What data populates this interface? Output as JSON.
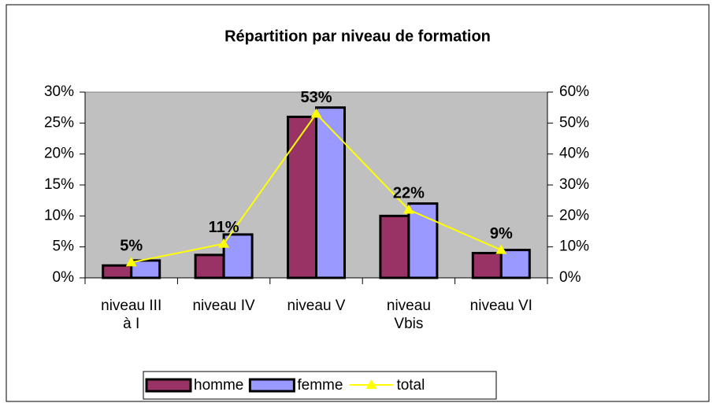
{
  "chart_data": {
    "type": "bar-line",
    "title": "Répartition par niveau de formation",
    "categories": [
      "niveau III à I",
      "niveau IV",
      "niveau V",
      "niveau Vbis",
      "niveau VI"
    ],
    "series": [
      {
        "name": "homme",
        "color": "#993366",
        "type": "bar",
        "values": [
          2,
          3.7,
          26,
          10,
          4
        ]
      },
      {
        "name": "femme",
        "color": "#9999ff",
        "type": "bar",
        "values": [
          2.8,
          7,
          27.5,
          12,
          4.5
        ]
      },
      {
        "name": "total",
        "color": "#ffff00",
        "type": "line",
        "axis": "y2",
        "values": [
          5,
          11,
          53,
          22,
          9
        ],
        "value_labels": [
          "5%",
          "11%",
          "53%",
          "22%",
          "9%"
        ]
      }
    ],
    "ylim": [
      0,
      30
    ],
    "yticks": [
      {
        "value": 0,
        "label": "0%"
      },
      {
        "value": 5,
        "label": "5%"
      },
      {
        "value": 10,
        "label": "10%"
      },
      {
        "value": 15,
        "label": "15%"
      },
      {
        "value": 20,
        "label": "20%"
      },
      {
        "value": 25,
        "label": "25%"
      },
      {
        "value": 30,
        "label": "30%"
      }
    ],
    "y2lim": [
      0,
      60
    ],
    "y2ticks": [
      {
        "value": 0,
        "label": "0%"
      },
      {
        "value": 10,
        "label": "10%"
      },
      {
        "value": 20,
        "label": "20%"
      },
      {
        "value": 30,
        "label": "30%"
      },
      {
        "value": 40,
        "label": "40%"
      },
      {
        "value": 50,
        "label": "50%"
      },
      {
        "value": 60,
        "label": "60%"
      }
    ],
    "plot_background": "#c0c0c0",
    "legend": "bottom"
  }
}
